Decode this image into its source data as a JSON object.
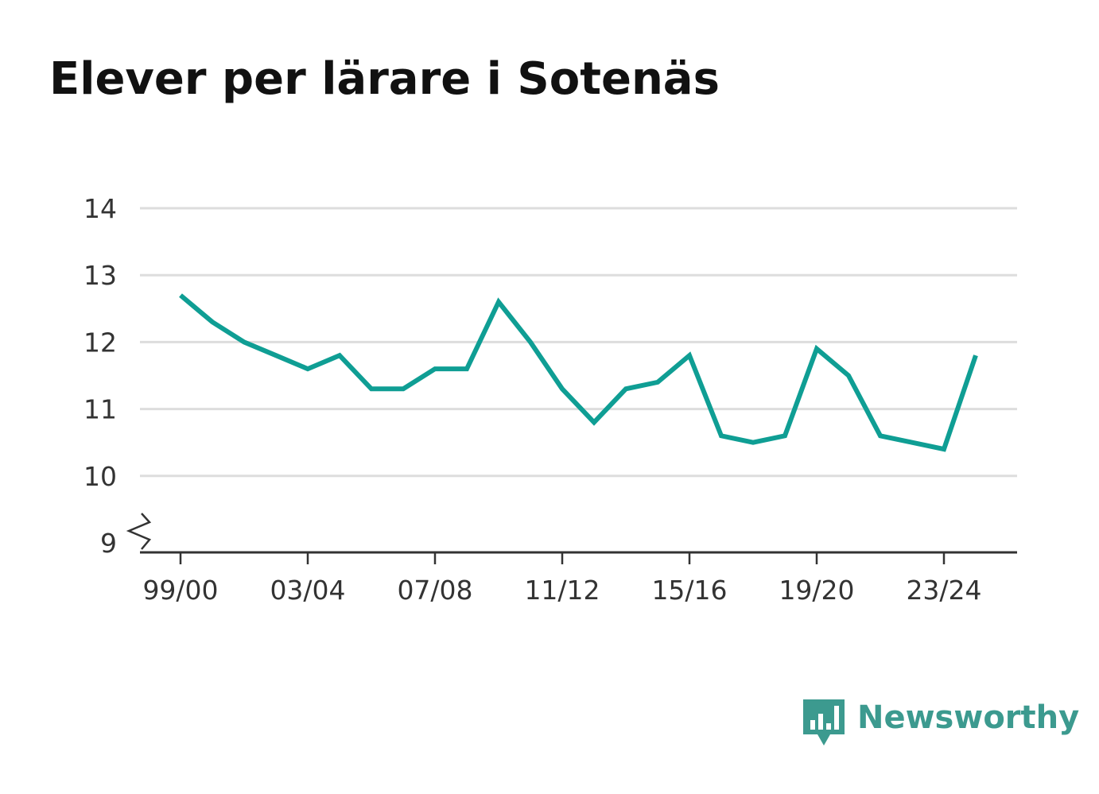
{
  "chart_data": {
    "type": "line",
    "title": "Elever per lärare i Sotenäs",
    "xlabel": "",
    "ylabel": "",
    "x": [
      "99/00",
      "00/01",
      "01/02",
      "02/03",
      "03/04",
      "04/05",
      "05/06",
      "06/07",
      "07/08",
      "08/09",
      "09/10",
      "10/11",
      "11/12",
      "12/13",
      "13/14",
      "14/15",
      "15/16",
      "16/17",
      "17/18",
      "18/19",
      "19/20",
      "20/21",
      "21/22",
      "22/23",
      "23/24",
      "24/25"
    ],
    "x_tick_labels": [
      "99/00",
      "03/04",
      "07/08",
      "11/12",
      "15/16",
      "19/20",
      "23/24"
    ],
    "series": [
      {
        "values": [
          12.7,
          12.3,
          12.0,
          11.8,
          11.6,
          11.8,
          11.3,
          11.3,
          11.6,
          11.6,
          12.6,
          12.0,
          11.3,
          10.8,
          11.3,
          11.4,
          11.8,
          10.6,
          10.5,
          10.6,
          11.9,
          11.5,
          10.6,
          10.5,
          10.4,
          11.8
        ]
      }
    ],
    "y_ticks": [
      9,
      10,
      11,
      12,
      13,
      14
    ],
    "ylim": [
      9,
      14
    ],
    "y_axis_break": true,
    "grid": true,
    "line_color": "#0f9e94"
  },
  "brand": {
    "name": "Newsworthy",
    "icon": "newsworthy-logo-icon",
    "color": "#3c9a8f"
  }
}
